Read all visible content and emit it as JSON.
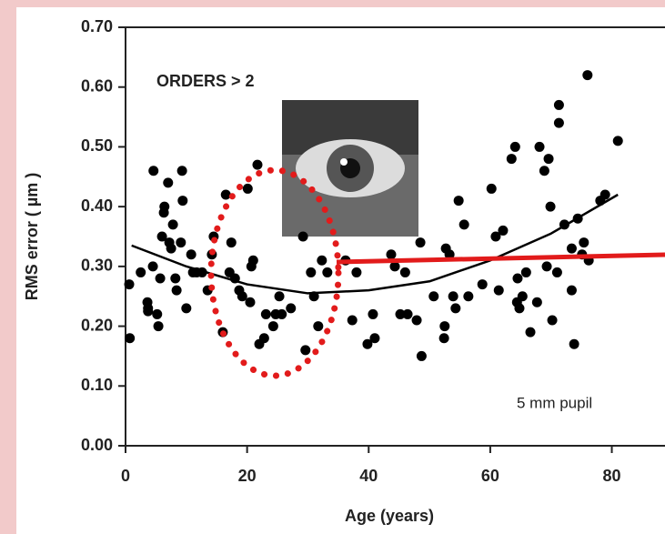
{
  "chart_data": {
    "type": "scatter",
    "annotations": [
      "ORDERS > 2",
      "5 mm pupil"
    ],
    "x_label": "Age (years)",
    "y_label": "RMS error ( µm )",
    "xlim": [
      0,
      88
    ],
    "xticks": [
      0,
      20,
      40,
      60,
      80
    ],
    "ylim": [
      0,
      0.7
    ],
    "yticks": [
      {
        "value": 0,
        "label": "0.00"
      },
      {
        "value": 0.1,
        "label": "0.10"
      },
      {
        "value": 0.2,
        "label": "0.20"
      },
      {
        "value": 0.3,
        "label": "0.30"
      },
      {
        "value": 0.4,
        "label": "0.40"
      },
      {
        "value": 0.5,
        "label": "0.50"
      },
      {
        "value": 0.6,
        "label": "0.60"
      },
      {
        "value": 0.7,
        "label": "0.70"
      }
    ],
    "series": [
      {
        "color": "#000000",
        "x": [
          0.6,
          0.7,
          2.5,
          3.6,
          3.7,
          3.7,
          4.5,
          4.6,
          5.2,
          5.4,
          5.7,
          6.0,
          6.3,
          6.4,
          7.0,
          7.2,
          7.5,
          7.8,
          8.2,
          8.4,
          9.1,
          9.3,
          9.4,
          10.0,
          10.8,
          11.1,
          11.7,
          12.6,
          13.5,
          14.2,
          14.5,
          16.0,
          16.5,
          17.1,
          17.4,
          18.0,
          18.7,
          19.2,
          20.1,
          20.5,
          20.7,
          21.0,
          21.7,
          22.0,
          22.8,
          23.1,
          24.3,
          24.7,
          25.3,
          25.7,
          27.2,
          29.2,
          29.6,
          30.5,
          31.0,
          31.7,
          32.3,
          33.2,
          36.2,
          37.3,
          38.0,
          39.8,
          40.7,
          41.0,
          43.7,
          44.3,
          45.2,
          46.0,
          46.4,
          47.9,
          48.5,
          48.7,
          50.7,
          52.4,
          52.5,
          52.7,
          53.3,
          53.9,
          54.3,
          54.8,
          55.7,
          56.4,
          58.7,
          60.2,
          60.9,
          61.4,
          62.1,
          63.5,
          64.1,
          64.4,
          64.5,
          64.8,
          65.3,
          65.9,
          66.6,
          67.7,
          68.1,
          68.9,
          69.3,
          69.6,
          69.9,
          70.2,
          71.0,
          71.3,
          71.3,
          72.2,
          73.4,
          73.4,
          73.8,
          74.4,
          75.1,
          75.4,
          76.0,
          76.2,
          78.1,
          78.9,
          81.0
        ],
        "values": [
          0.27,
          0.18,
          0.29,
          0.24,
          0.23,
          0.225,
          0.3,
          0.46,
          0.22,
          0.2,
          0.28,
          0.35,
          0.39,
          0.4,
          0.44,
          0.34,
          0.33,
          0.37,
          0.28,
          0.26,
          0.34,
          0.46,
          0.41,
          0.23,
          0.32,
          0.29,
          0.29,
          0.29,
          0.26,
          0.32,
          0.35,
          0.19,
          0.42,
          0.29,
          0.34,
          0.28,
          0.26,
          0.25,
          0.43,
          0.24,
          0.3,
          0.31,
          0.47,
          0.17,
          0.18,
          0.22,
          0.2,
          0.22,
          0.25,
          0.22,
          0.23,
          0.35,
          0.16,
          0.29,
          0.25,
          0.2,
          0.31,
          0.29,
          0.31,
          0.21,
          0.29,
          0.17,
          0.22,
          0.18,
          0.32,
          0.3,
          0.22,
          0.29,
          0.22,
          0.21,
          0.34,
          0.15,
          0.25,
          0.18,
          0.2,
          0.33,
          0.32,
          0.25,
          0.23,
          0.41,
          0.37,
          0.25,
          0.27,
          0.43,
          0.35,
          0.26,
          0.36,
          0.48,
          0.5,
          0.24,
          0.28,
          0.23,
          0.25,
          0.29,
          0.19,
          0.24,
          0.5,
          0.46,
          0.3,
          0.48,
          0.4,
          0.21,
          0.29,
          0.54,
          0.57,
          0.37,
          0.26,
          0.33,
          0.17,
          0.38,
          0.32,
          0.34,
          0.62,
          0.31,
          0.41,
          0.42,
          0.51
        ]
      },
      {
        "type": "line",
        "color": "#000000",
        "x": [
          1,
          10,
          20,
          30,
          40,
          50,
          60,
          70,
          81
        ],
        "values": [
          0.335,
          0.3,
          0.27,
          0.255,
          0.26,
          0.275,
          0.31,
          0.355,
          0.42
        ]
      }
    ]
  }
}
